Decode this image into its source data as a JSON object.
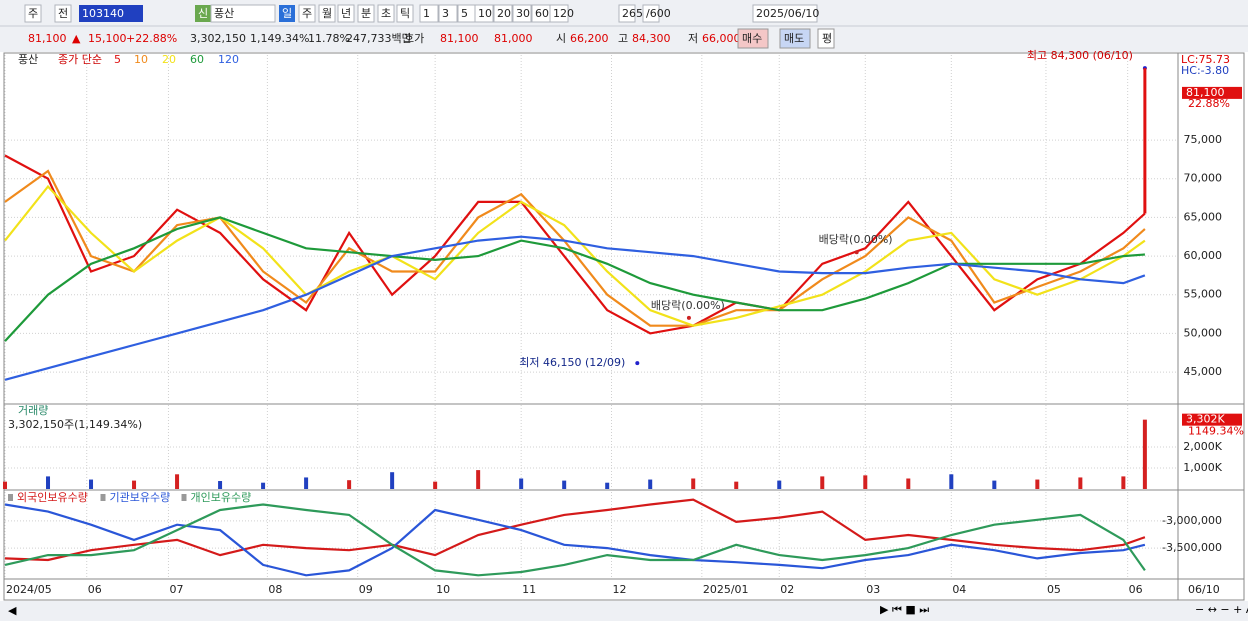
{
  "toolbar": {
    "row1": [
      "주",
      "전",
      "103140",
      "신",
      "풍산",
      "일",
      "주",
      "월",
      "년",
      "분",
      "초",
      "틱",
      "1",
      "3",
      "5",
      "10",
      "20",
      "30",
      "60",
      "120",
      "265",
      "/600",
      "2025/06/10"
    ],
    "row2": [
      "81,100",
      "▲",
      "15,100",
      "+22.88%",
      "3,302,150",
      "1,149.34%",
      "11.78%",
      "247,733백만",
      "호가",
      "81,100",
      "81,000",
      "시",
      "66,200",
      "고",
      "84,300",
      "저",
      "66,000",
      "매수",
      "매도",
      "평"
    ]
  },
  "chart_data": [
    {
      "type": "line",
      "label": "풍산",
      "legend_title": "종가 단순",
      "x": [
        0,
        10,
        20,
        30,
        40,
        50,
        60,
        70,
        80,
        90,
        100,
        110,
        120,
        130,
        140,
        150,
        160,
        170,
        180,
        190,
        200,
        210,
        220,
        230,
        240,
        250,
        260,
        265
      ],
      "xlim": [
        0,
        272.7
      ],
      "ylim": [
        41000,
        86000
      ],
      "yticks": [
        {
          "value": 45000,
          "label": "45,000"
        },
        {
          "value": 50000,
          "label": "50,000"
        },
        {
          "value": 55000,
          "label": "55,000"
        },
        {
          "value": 60000,
          "label": "60,000"
        },
        {
          "value": 65000,
          "label": "65,000"
        },
        {
          "value": 70000,
          "label": "70,000"
        },
        {
          "value": 75000,
          "label": "75,000"
        }
      ],
      "series": [
        {
          "name": "5",
          "color": "#e01010",
          "values": [
            73000,
            70000,
            58000,
            60000,
            66000,
            63000,
            57000,
            53000,
            63000,
            55000,
            60000,
            67000,
            67000,
            60000,
            53000,
            50000,
            51000,
            54000,
            53000,
            59000,
            61000,
            67000,
            60000,
            53000,
            57000,
            59000,
            63000,
            65500
          ]
        },
        {
          "name": "10",
          "color": "#f08a1c",
          "values": [
            67000,
            71000,
            60000,
            58000,
            64000,
            65000,
            58000,
            54000,
            61000,
            58000,
            58000,
            65000,
            68000,
            62000,
            55000,
            51000,
            51000,
            53000,
            53000,
            57000,
            60000,
            65000,
            62000,
            54000,
            56000,
            58000,
            61000,
            63500
          ]
        },
        {
          "name": "20",
          "color": "#f2e21a",
          "values": [
            62000,
            69000,
            63000,
            58000,
            62000,
            65000,
            61000,
            55000,
            58000,
            60000,
            57000,
            63000,
            67000,
            64000,
            58000,
            53000,
            51000,
            52000,
            53500,
            55000,
            58000,
            62000,
            63000,
            57000,
            55000,
            57000,
            60000,
            62000
          ]
        },
        {
          "name": "60",
          "color": "#1e9a3a",
          "values": [
            49000,
            55000,
            59000,
            61000,
            63500,
            65000,
            63000,
            61000,
            60500,
            60000,
            59500,
            60000,
            62000,
            61000,
            59000,
            56500,
            55000,
            54000,
            53000,
            53000,
            54500,
            56500,
            59000,
            59000,
            59000,
            59000,
            60000,
            60200
          ]
        },
        {
          "name": "120",
          "color": "#2f5fe0",
          "values": [
            44000,
            45500,
            47000,
            48500,
            50000,
            51500,
            53000,
            55000,
            57500,
            60000,
            61000,
            62000,
            62500,
            62000,
            61000,
            60500,
            60000,
            59000,
            58000,
            57800,
            57800,
            58500,
            59000,
            58500,
            58000,
            57000,
            56500,
            57500
          ]
        }
      ],
      "annotations": [
        {
          "text": "최고 84,300 (06/10)",
          "x": 265,
          "y": 84300
        },
        {
          "text": "최저 46,150 (12/09)",
          "x": 147,
          "y": 46150
        },
        {
          "text": "배당락(0.00%)",
          "x": 159,
          "y": 52000
        },
        {
          "text": "배당락(0.00%)",
          "x": 198,
          "y": 60500
        }
      ],
      "right_labels": [
        "LC:75.73",
        "HC:-3.80"
      ],
      "last_label": {
        "value": 81100,
        "label": "81,100"
      },
      "change_label": "22.88%"
    },
    {
      "type": "bar",
      "title": "거래량",
      "subtitle": "3,302,150주(1,149.34%)",
      "x": [
        0,
        10,
        20,
        30,
        40,
        50,
        60,
        70,
        80,
        90,
        100,
        110,
        120,
        130,
        140,
        150,
        160,
        170,
        180,
        190,
        200,
        210,
        220,
        230,
        240,
        250,
        260,
        265
      ],
      "xlim": [
        0,
        272.7
      ],
      "ylim": [
        0,
        4000000
      ],
      "yticks": [
        {
          "value": 1000000,
          "label": "1,000K"
        },
        {
          "value": 2000000,
          "label": "2,000K"
        }
      ],
      "values": [
        350000,
        600000,
        450000,
        400000,
        700000,
        380000,
        300000,
        550000,
        420000,
        800000,
        350000,
        900000,
        500000,
        400000,
        300000,
        450000,
        500000,
        350000,
        400000,
        600000,
        650000,
        500000,
        700000,
        400000,
        450000,
        550000,
        600000,
        3302150
      ],
      "colors": [
        "#d42020",
        "#2040c0",
        "#2040c0",
        "#d42020",
        "#d42020",
        "#2040c0",
        "#2040c0",
        "#2040c0",
        "#d42020",
        "#2040c0",
        "#d42020",
        "#d42020",
        "#2040c0",
        "#2040c0",
        "#2040c0",
        "#2040c0",
        "#d42020",
        "#d42020",
        "#2040c0",
        "#d42020",
        "#d42020",
        "#d42020",
        "#2040c0",
        "#2040c0",
        "#d42020",
        "#d42020",
        "#d42020",
        "#d42020"
      ],
      "last_label": {
        "value": 3302150,
        "label": "3,302K"
      },
      "change_label": "1149.34%"
    },
    {
      "type": "line",
      "x": [
        0,
        10,
        20,
        30,
        40,
        50,
        60,
        70,
        80,
        90,
        100,
        110,
        120,
        130,
        140,
        150,
        160,
        170,
        180,
        190,
        200,
        210,
        220,
        230,
        240,
        250,
        260,
        265
      ],
      "xlim": [
        0,
        272.7
      ],
      "ylim": [
        -4050000,
        -2470000
      ],
      "yticks": [
        {
          "value": -3000000,
          "label": "-3,000,000"
        },
        {
          "value": -3500000,
          "label": "-3,500,000"
        }
      ],
      "xticks": [
        {
          "value": 0,
          "label": "2024/05"
        },
        {
          "value": 19,
          "label": "06"
        },
        {
          "value": 38,
          "label": "07"
        },
        {
          "value": 61,
          "label": "08"
        },
        {
          "value": 82,
          "label": "09"
        },
        {
          "value": 100,
          "label": "10"
        },
        {
          "value": 120,
          "label": "11"
        },
        {
          "value": 141,
          "label": "12"
        },
        {
          "value": 162,
          "label": "2025/01"
        },
        {
          "value": 180,
          "label": "02"
        },
        {
          "value": 200,
          "label": "03"
        },
        {
          "value": 220,
          "label": "04"
        },
        {
          "value": 242,
          "label": "05"
        },
        {
          "value": 261,
          "label": "06"
        }
      ],
      "x_end_label": "06/10",
      "series": [
        {
          "name": "외국인보유수량",
          "color": "#d41a1a",
          "values": [
            -3690000,
            -3720000,
            -3540000,
            -3440000,
            -3350000,
            -3630000,
            -3440000,
            -3500000,
            -3540000,
            -3440000,
            -3630000,
            -3260000,
            -3070000,
            -2890000,
            -2800000,
            -2700000,
            -2610000,
            -3020000,
            -2940000,
            -2830000,
            -3350000,
            -3260000,
            -3350000,
            -3440000,
            -3500000,
            -3540000,
            -3440000,
            -3300000
          ]
        },
        {
          "name": "기관보유수량",
          "color": "#2a56d8",
          "values": [
            -2700000,
            -2830000,
            -3070000,
            -3350000,
            -3070000,
            -3170000,
            -3810000,
            -4000000,
            -3910000,
            -3500000,
            -2800000,
            -2980000,
            -3170000,
            -3440000,
            -3500000,
            -3630000,
            -3720000,
            -3760000,
            -3810000,
            -3870000,
            -3720000,
            -3630000,
            -3440000,
            -3540000,
            -3690000,
            -3590000,
            -3540000,
            -3440000
          ]
        },
        {
          "name": "개인보유수량",
          "color": "#2e9a5a",
          "values": [
            -3810000,
            -3630000,
            -3630000,
            -3540000,
            -3170000,
            -2800000,
            -2700000,
            -2800000,
            -2890000,
            -3440000,
            -3910000,
            -4000000,
            -3940000,
            -3810000,
            -3630000,
            -3720000,
            -3720000,
            -3440000,
            -3630000,
            -3720000,
            -3630000,
            -3500000,
            -3260000,
            -3070000,
            -2980000,
            -2890000,
            -3350000,
            -3910000
          ]
        }
      ]
    }
  ]
}
